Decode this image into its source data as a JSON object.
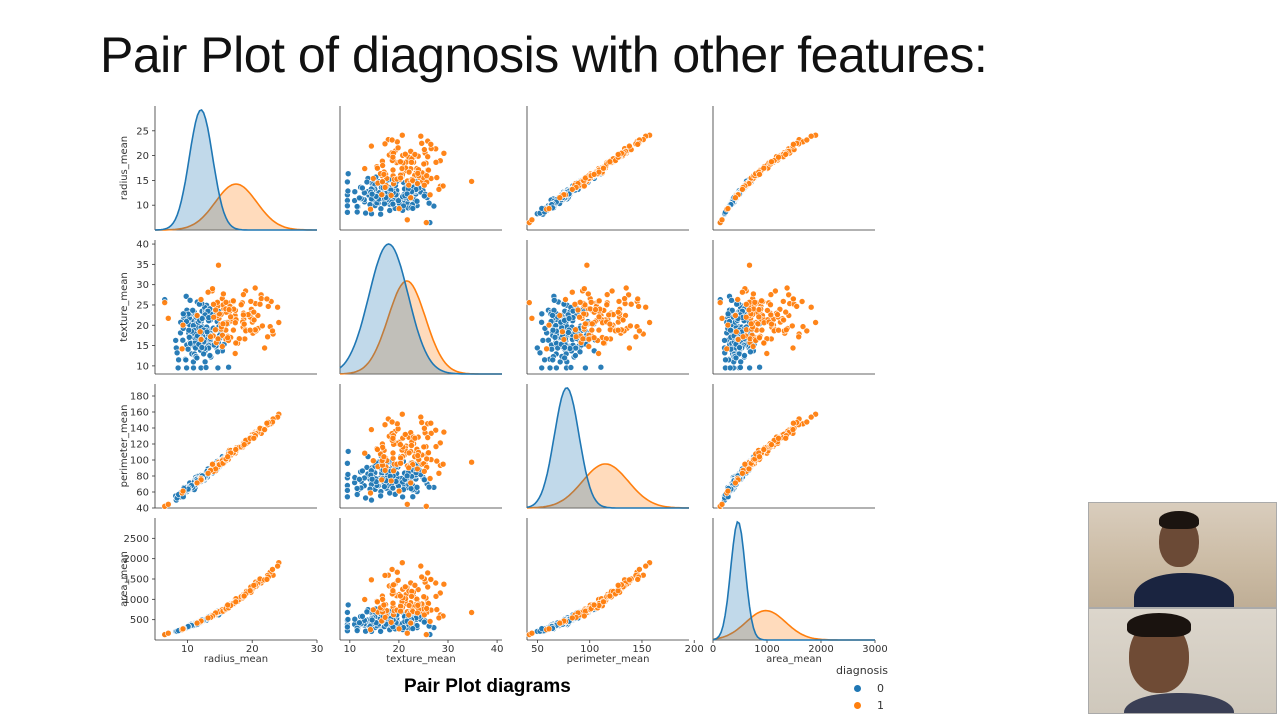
{
  "slide": {
    "title": "Pair Plot of diagnosis with other features:",
    "caption": "Pair Plot diagrams"
  },
  "legend": {
    "title": "diagnosis",
    "items": [
      {
        "label": "0",
        "color": "#1f77b4"
      },
      {
        "label": "1",
        "color": "#ff7f0e"
      }
    ]
  },
  "chart_data": {
    "type": "scatter",
    "description_kind": "pairplot",
    "hue": "diagnosis",
    "colors": {
      "0": "#1f77b4",
      "1": "#ff7f0e"
    },
    "variables": [
      {
        "name": "radius_mean",
        "lim": [
          5,
          30
        ],
        "yticks": [
          10,
          15,
          20,
          25
        ],
        "xticks": [
          10,
          20,
          30
        ],
        "groups": {
          "0": {
            "mean": 12.1,
            "sd": 1.8
          },
          "1": {
            "mean": 17.5,
            "sd": 3.2
          }
        }
      },
      {
        "name": "texture_mean",
        "lim": [
          8,
          41
        ],
        "yticks": [
          10,
          15,
          20,
          25,
          30,
          35,
          40
        ],
        "xticks": [
          10,
          20,
          30,
          40
        ],
        "groups": {
          "0": {
            "mean": 17.9,
            "sd": 4.0
          },
          "1": {
            "mean": 21.6,
            "sd": 3.8
          }
        }
      },
      {
        "name": "perimeter_mean",
        "lim": [
          40,
          195
        ],
        "yticks": [
          40,
          60,
          80,
          100,
          120,
          140,
          160,
          180
        ],
        "xticks": [
          50,
          100,
          150,
          200
        ],
        "groups": {
          "0": {
            "mean": 78,
            "sd": 11.8
          },
          "1": {
            "mean": 115,
            "sd": 21.9
          }
        }
      },
      {
        "name": "area_mean",
        "lim": [
          0,
          3000
        ],
        "yticks": [
          500,
          1000,
          1500,
          2000,
          2500
        ],
        "xticks": [
          0,
          1000,
          2000,
          3000
        ],
        "groups": {
          "0": {
            "mean": 463,
            "sd": 134
          },
          "1": {
            "mean": 978,
            "sd": 368
          }
        }
      }
    ]
  }
}
